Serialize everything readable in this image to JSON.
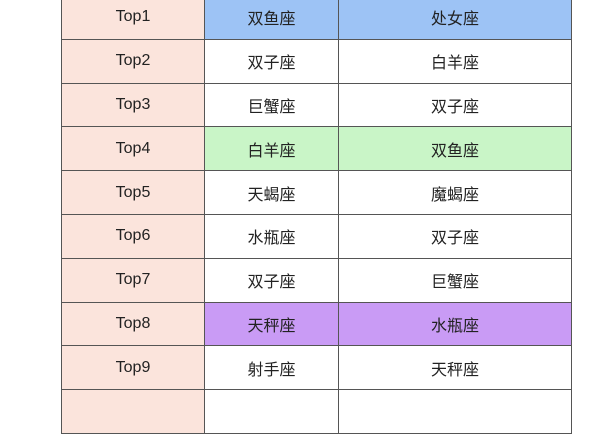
{
  "highlight_colors": {
    "rank_column": "#fbe4dc",
    "blue": "#9dc3f5",
    "green": "#c9f5c7",
    "purple": "#c99bf5"
  },
  "rows": [
    {
      "rank": "Top1",
      "col2": "双鱼座",
      "col3": "处女座",
      "highlight": "blue"
    },
    {
      "rank": "Top2",
      "col2": "双子座",
      "col3": "白羊座",
      "highlight": ""
    },
    {
      "rank": "Top3",
      "col2": "巨蟹座",
      "col3": "双子座",
      "highlight": ""
    },
    {
      "rank": "Top4",
      "col2": "白羊座",
      "col3": "双鱼座",
      "highlight": "green"
    },
    {
      "rank": "Top5",
      "col2": "天蝎座",
      "col3": "魔蝎座",
      "highlight": ""
    },
    {
      "rank": "Top6",
      "col2": "水瓶座",
      "col3": "双子座",
      "highlight": ""
    },
    {
      "rank": "Top7",
      "col2": "双子座",
      "col3": "巨蟹座",
      "highlight": ""
    },
    {
      "rank": "Top8",
      "col2": "天秤座",
      "col3": "水瓶座",
      "highlight": "purple"
    },
    {
      "rank": "Top9",
      "col2": "射手座",
      "col3": "天秤座",
      "highlight": ""
    },
    {
      "rank": "",
      "col2": "",
      "col3": "",
      "highlight": ""
    }
  ]
}
